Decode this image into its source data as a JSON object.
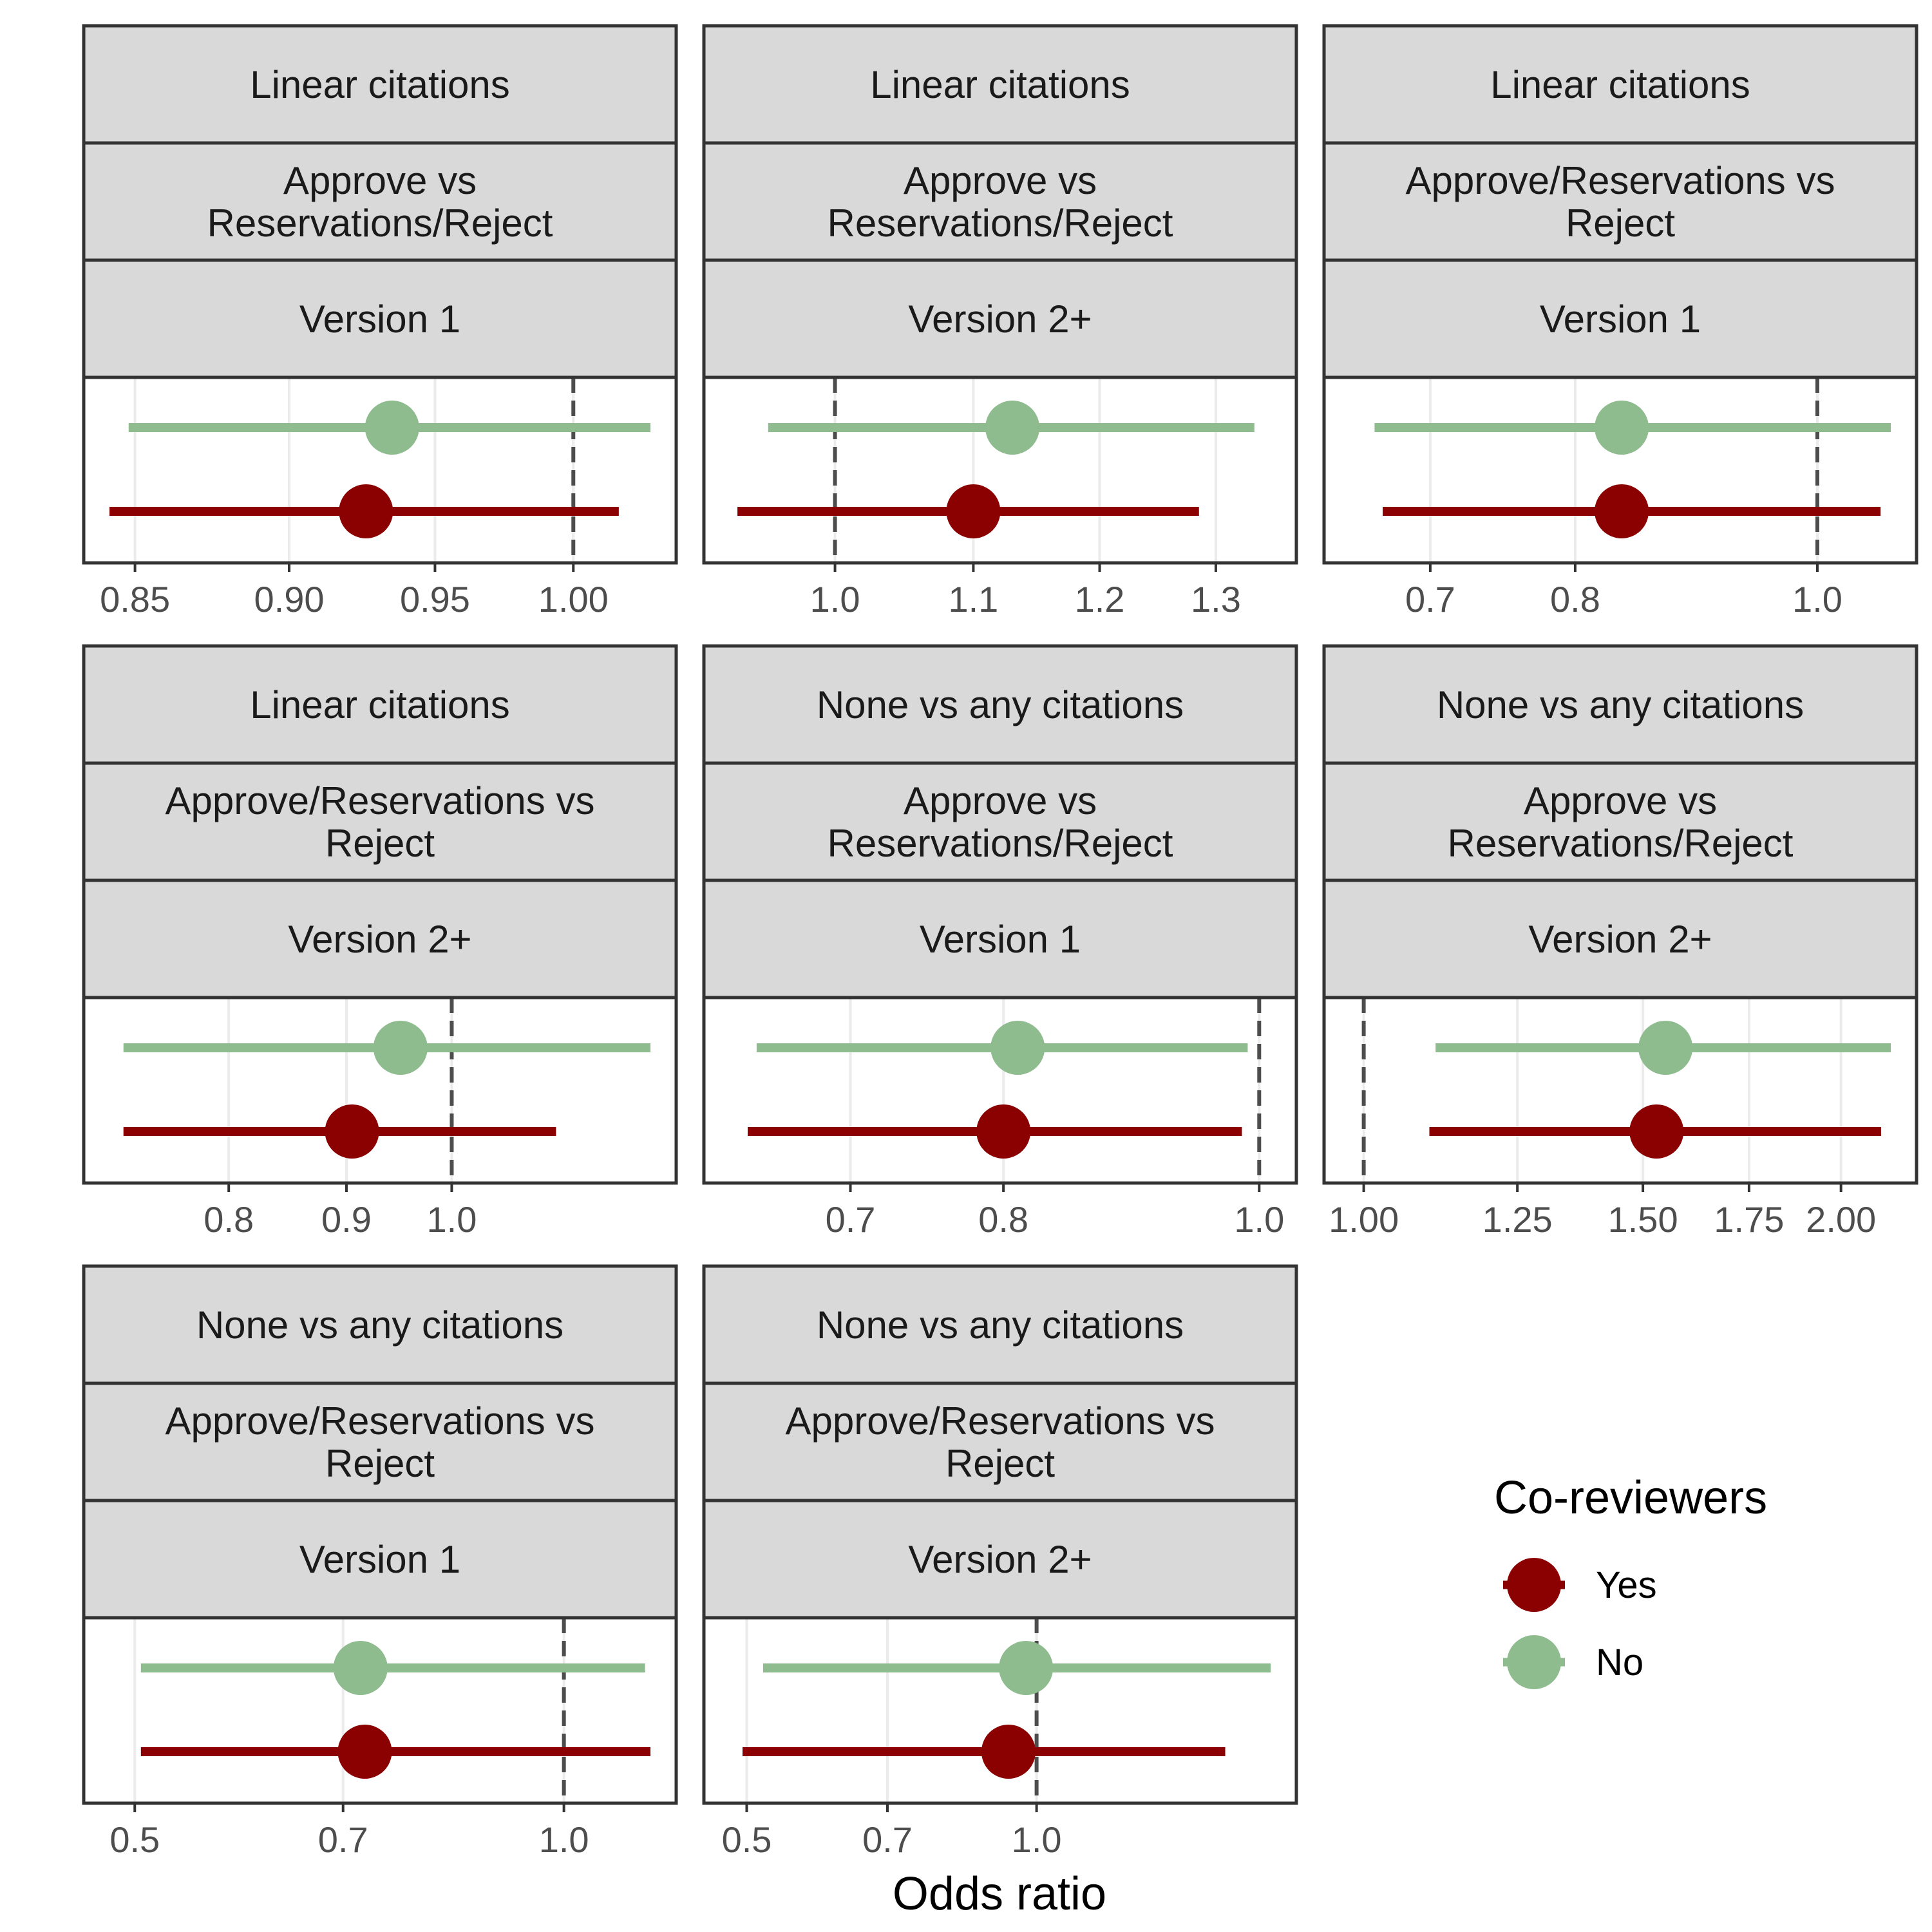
{
  "chart_data": [
    {
      "type": "forest",
      "strips": [
        "Linear citations",
        "Approve vs Reservations/Reject",
        "Version 1"
      ],
      "xlabel": "Odds ratio",
      "scale": "log",
      "xlim": [
        0.842,
        1.029
      ],
      "ticks": [
        0.85,
        0.9,
        0.95,
        1.0
      ],
      "tick_labels": [
        "0.85",
        "0.90",
        "0.95",
        "1.00"
      ],
      "reference_line": 1.0,
      "series": [
        {
          "name": "No",
          "estimate": 0.935,
          "lower": 0.848,
          "upper": 1.029
        },
        {
          "name": "Yes",
          "estimate": 0.926,
          "lower": 0.842,
          "upper": 1.017
        }
      ]
    },
    {
      "type": "forest",
      "strips": [
        "Linear citations",
        "Approve vs Reservations/Reject",
        "Version 2+"
      ],
      "xlabel": "Odds ratio",
      "scale": "log",
      "xlim": [
        0.93,
        1.35
      ],
      "ticks": [
        1.0,
        1.1,
        1.2,
        1.3
      ],
      "tick_labels": [
        "1.0",
        "1.1",
        "1.2",
        "1.3"
      ],
      "reference_line": 1.0,
      "series": [
        {
          "name": "No",
          "estimate": 1.13,
          "lower": 0.955,
          "upper": 1.335
        },
        {
          "name": "Yes",
          "estimate": 1.1,
          "lower": 0.935,
          "upper": 1.285
        }
      ]
    },
    {
      "type": "forest",
      "strips": [
        "Linear citations",
        "Approve/Reservations vs Reject",
        "Version 1"
      ],
      "xlabel": "Odds ratio",
      "scale": "log",
      "xlim": [
        0.65,
        1.07
      ],
      "ticks": [
        0.7,
        0.8,
        1.0
      ],
      "tick_labels": [
        "0.7",
        "0.8",
        "1.0"
      ],
      "reference_line": 1.0,
      "series": [
        {
          "name": "No",
          "estimate": 0.835,
          "lower": 0.665,
          "upper": 1.07
        },
        {
          "name": "Yes",
          "estimate": 0.835,
          "lower": 0.67,
          "upper": 1.06
        }
      ]
    },
    {
      "type": "forest",
      "strips": [
        "Linear citations",
        "Approve/Reservations vs Reject",
        "Version 2+"
      ],
      "xlabel": "Odds ratio",
      "scale": "log",
      "xlim": [
        0.71,
        1.22
      ],
      "ticks": [
        0.8,
        0.9,
        1.0
      ],
      "tick_labels": [
        "0.8",
        "0.9",
        "1.0"
      ],
      "reference_line": 1.0,
      "series": [
        {
          "name": "No",
          "estimate": 0.95,
          "lower": 0.72,
          "upper": 1.22
        },
        {
          "name": "Yes",
          "estimate": 0.905,
          "lower": 0.72,
          "upper": 1.11
        }
      ]
    },
    {
      "type": "forest",
      "strips": [
        "None vs any citations",
        "Approve vs Reservations/Reject",
        "Version 1"
      ],
      "xlabel": "Odds ratio",
      "scale": "log",
      "xlim": [
        0.63,
        1.01
      ],
      "ticks": [
        0.7,
        0.8,
        1.0
      ],
      "tick_labels": [
        "0.7",
        "0.8",
        "1.0"
      ],
      "reference_line": 1.0,
      "series": [
        {
          "name": "No",
          "estimate": 0.81,
          "lower": 0.645,
          "upper": 0.99
        },
        {
          "name": "Yes",
          "estimate": 0.8,
          "lower": 0.64,
          "upper": 0.985
        }
      ]
    },
    {
      "type": "forest",
      "strips": [
        "None vs any citations",
        "Approve vs Reservations/Reject",
        "Version 2+"
      ],
      "xlabel": "Odds ratio",
      "scale": "log",
      "xlim": [
        0.98,
        2.15
      ],
      "ticks": [
        1.0,
        1.25,
        1.5,
        1.75,
        2.0
      ],
      "tick_labels": [
        "1.00",
        "1.25",
        "1.50",
        "1.75",
        "2.00"
      ],
      "reference_line": 1.0,
      "series": [
        {
          "name": "No",
          "estimate": 1.55,
          "lower": 1.11,
          "upper": 2.15
        },
        {
          "name": "Yes",
          "estimate": 1.53,
          "lower": 1.1,
          "upper": 2.12
        }
      ]
    },
    {
      "type": "forest",
      "strips": [
        "None vs any citations",
        "Approve/Reservations vs Reject",
        "Version 1"
      ],
      "xlabel": "Odds ratio",
      "scale": "log",
      "xlim": [
        0.48,
        1.15
      ],
      "ticks": [
        0.5,
        0.7,
        1.0
      ],
      "tick_labels": [
        "0.5",
        "0.7",
        "1.0"
      ],
      "reference_line": 1.0,
      "series": [
        {
          "name": "No",
          "estimate": 0.72,
          "lower": 0.505,
          "upper": 1.14
        },
        {
          "name": "Yes",
          "estimate": 0.725,
          "lower": 0.505,
          "upper": 1.15
        }
      ]
    },
    {
      "type": "forest",
      "strips": [
        "None vs any citations",
        "Approve/Reservations vs Reject",
        "Version 2+"
      ],
      "xlabel": "Odds ratio",
      "scale": "log",
      "xlim": [
        0.48,
        1.75
      ],
      "ticks": [
        0.5,
        0.7,
        1.0
      ],
      "tick_labels": [
        "0.5",
        "0.7",
        "1.0"
      ],
      "reference_line": 1.0,
      "series": [
        {
          "name": "No",
          "estimate": 0.975,
          "lower": 0.52,
          "upper": 1.75
        },
        {
          "name": "Yes",
          "estimate": 0.935,
          "lower": 0.495,
          "upper": 1.57
        }
      ]
    }
  ],
  "axis_title": "Odds ratio",
  "legend": {
    "title": "Co-reviewers",
    "items": [
      {
        "label": "Yes",
        "color": "#8b0000"
      },
      {
        "label": "No",
        "color": "#8fbc8f"
      }
    ]
  },
  "colors": {
    "Yes": "#8b0000",
    "No": "#8fbc8f",
    "strip_fill": "#d9d9d9",
    "border": "#333333",
    "gridline": "#ebebeb",
    "reference_line": "#4d4d4d"
  }
}
